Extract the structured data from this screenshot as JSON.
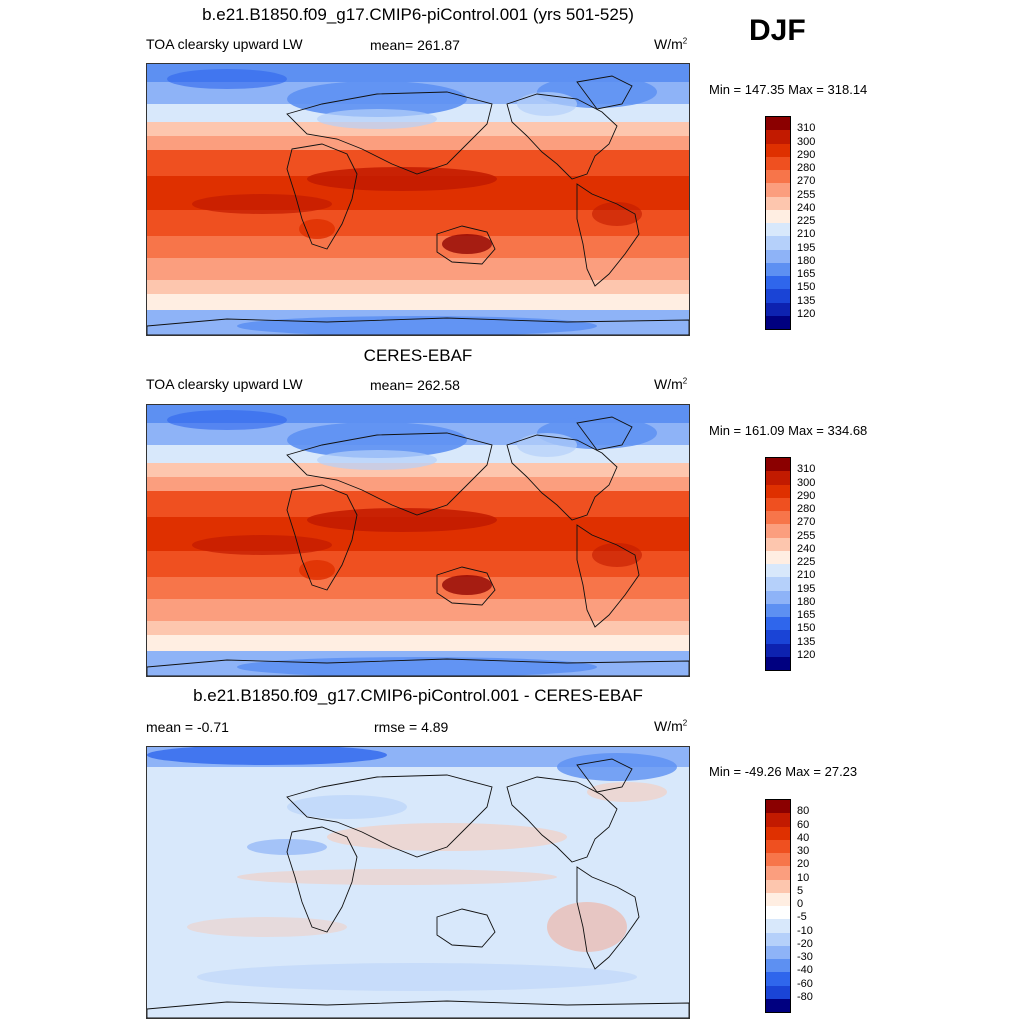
{
  "season": "DJF",
  "panels": [
    {
      "title": "b.e21.B1850.f09_g17.CMIP6-piControl.001 (yrs 501-525)",
      "left_label": "TOA clearsky upward LW",
      "mid_label": "mean= 261.87",
      "units_base": "W/m",
      "units_sup": "2",
      "minmax": "Min = 147.35 Max = 318.14",
      "colorbar_ticks": [
        "310",
        "300",
        "290",
        "280",
        "270",
        "255",
        "240",
        "225",
        "210",
        "195",
        "180",
        "165",
        "150",
        "135",
        "120"
      ],
      "colors": [
        "#8b0000",
        "#c21a00",
        "#df3000",
        "#ef5020",
        "#f7754a",
        "#fb9e7e",
        "#fdc6ae",
        "#ffeee2",
        "#d8e8fb",
        "#b5d0fa",
        "#8eb3f7",
        "#5d90f2",
        "#2f66ec",
        "#1a44d6",
        "#0d22b0",
        "#000080"
      ]
    },
    {
      "title": "CERES-EBAF",
      "left_label": "TOA clearsky upward LW",
      "mid_label": "mean= 262.58",
      "units_base": "W/m",
      "units_sup": "2",
      "minmax": "Min = 161.09 Max = 334.68",
      "colorbar_ticks": [
        "310",
        "300",
        "290",
        "280",
        "270",
        "255",
        "240",
        "225",
        "210",
        "195",
        "180",
        "165",
        "150",
        "135",
        "120"
      ],
      "colors": [
        "#8b0000",
        "#c21a00",
        "#df3000",
        "#ef5020",
        "#f7754a",
        "#fb9e7e",
        "#fdc6ae",
        "#ffeee2",
        "#d8e8fb",
        "#b5d0fa",
        "#8eb3f7",
        "#5d90f2",
        "#2f66ec",
        "#1a44d6",
        "#0d22b0",
        "#000080"
      ]
    },
    {
      "title": "b.e21.B1850.f09_g17.CMIP6-piControl.001 - CERES-EBAF",
      "left_label": "mean =  -0.71",
      "mid_label": "rmse =   4.89",
      "units_base": "W/m",
      "units_sup": "2",
      "minmax": "Min = -49.26 Max =  27.23",
      "colorbar_ticks": [
        "80",
        "60",
        "40",
        "30",
        "20",
        "10",
        "5",
        "0",
        "-5",
        "-10",
        "-20",
        "-30",
        "-40",
        "-60",
        "-80"
      ],
      "colors": [
        "#8b0000",
        "#c21a00",
        "#df3000",
        "#ef5020",
        "#f7754a",
        "#fb9e7e",
        "#fdc6ae",
        "#ffeee2",
        "#ffffff",
        "#d8e8fb",
        "#b5d0fa",
        "#8eb3f7",
        "#5d90f2",
        "#2f66ec",
        "#1a44d6",
        "#000080"
      ]
    }
  ]
}
